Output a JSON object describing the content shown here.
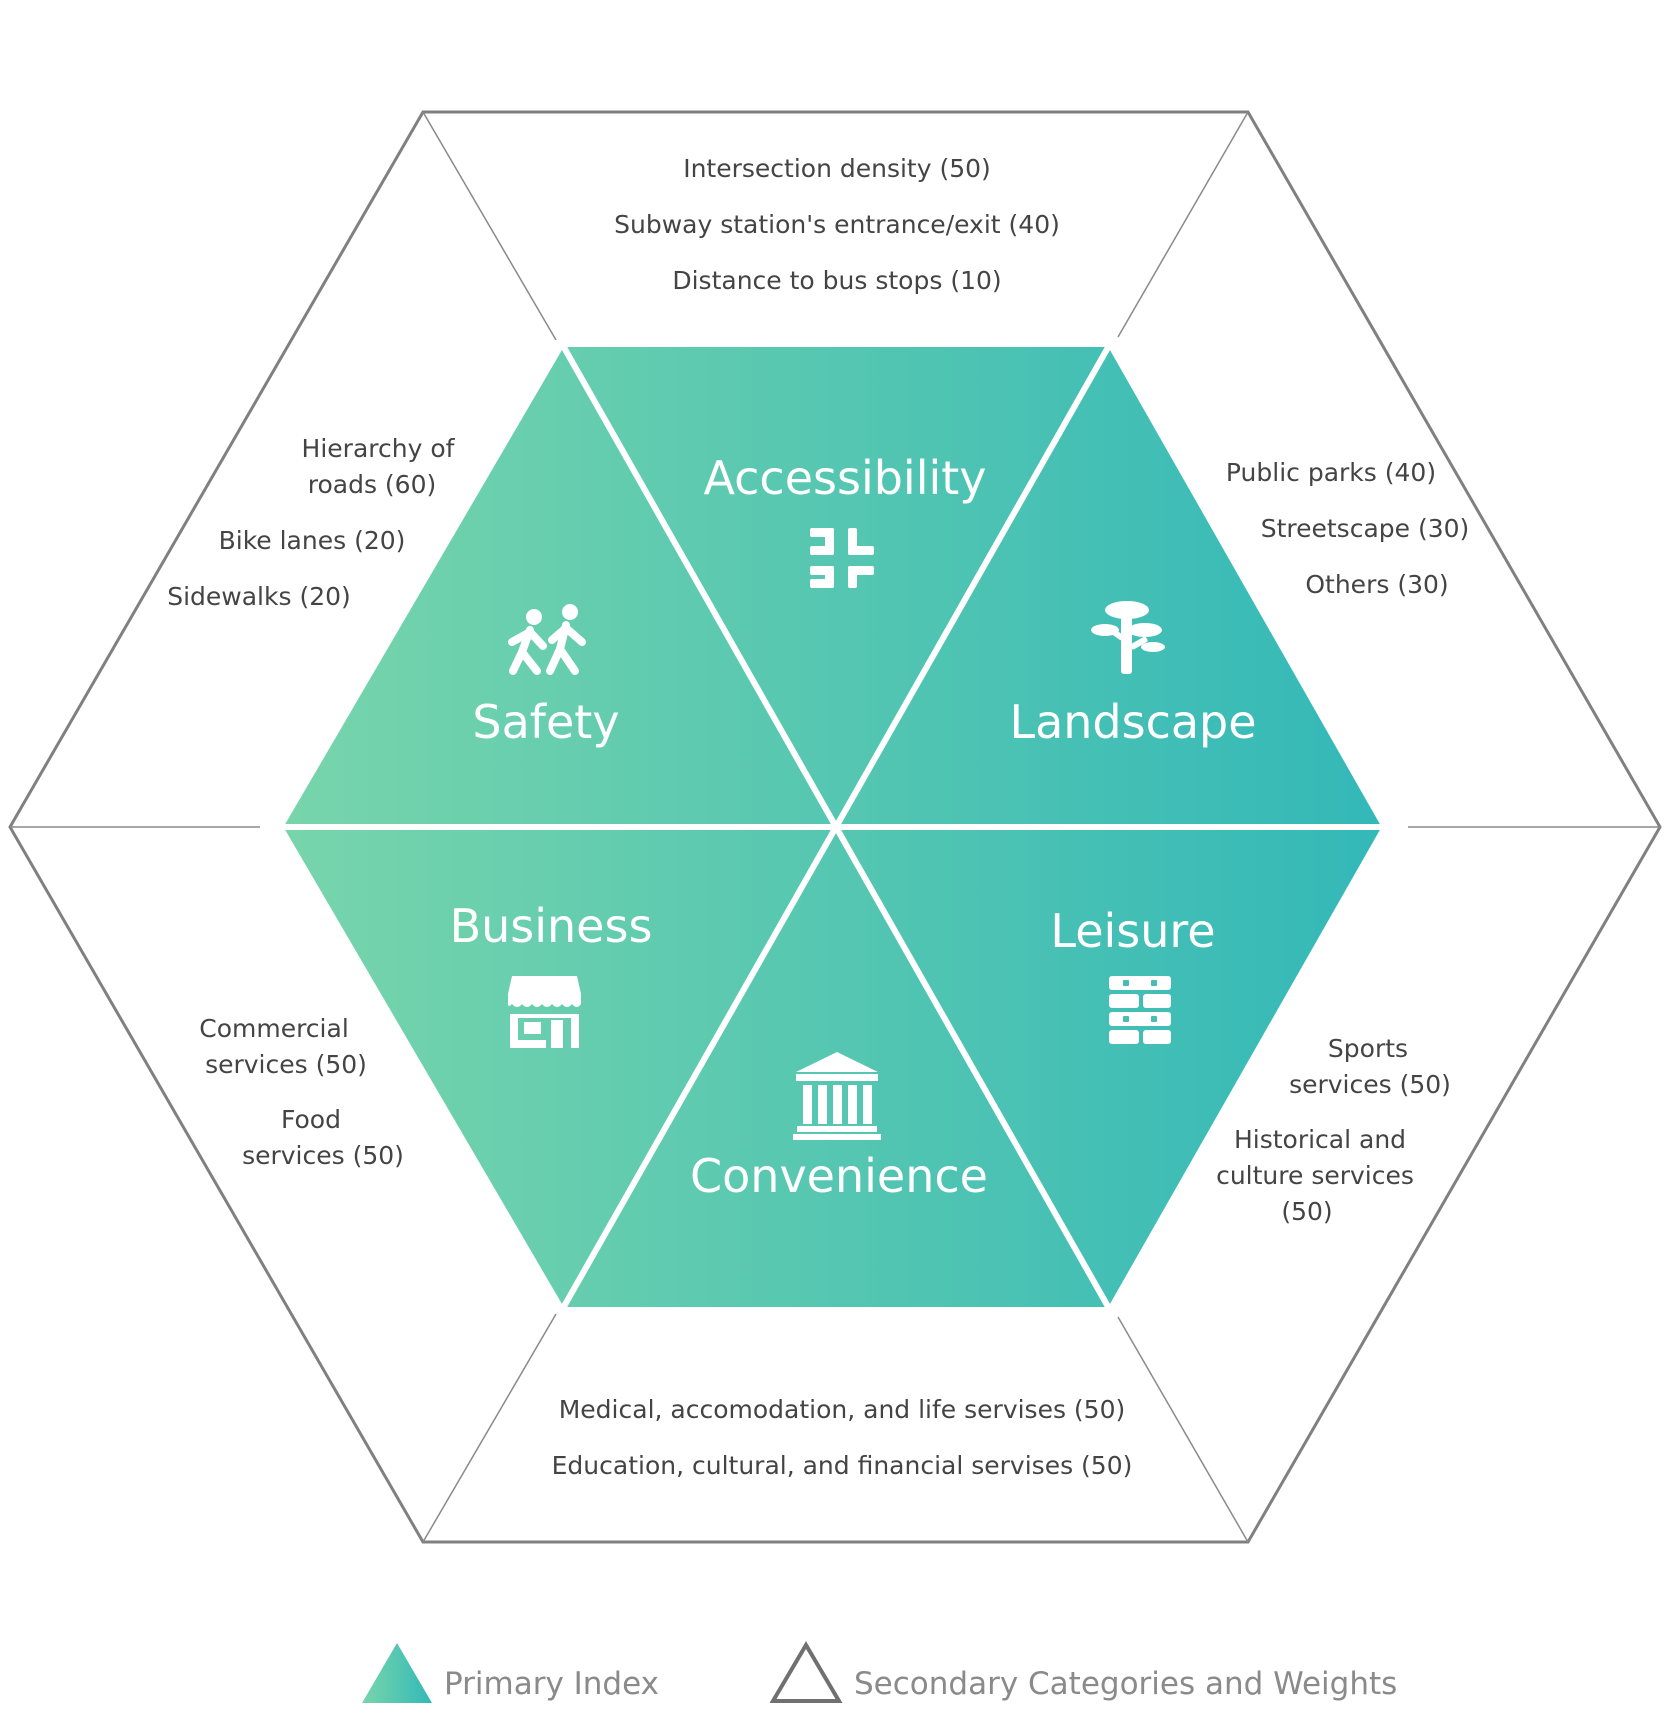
{
  "primary": {
    "accessibility": {
      "label": "Accessibility",
      "icon": "intersection-icon"
    },
    "safety": {
      "label": "Safety",
      "icon": "pedestrians-icon"
    },
    "landscape": {
      "label": "Landscape",
      "icon": "tree-icon"
    },
    "business": {
      "label": "Business",
      "icon": "storefront-icon"
    },
    "convenience": {
      "label": "Convenience",
      "icon": "building-columns-icon"
    },
    "leisure": {
      "label": "Leisure",
      "icon": "brick-wall-icon"
    }
  },
  "secondary": {
    "accessibility": [
      "Intersection density (50)",
      "Subway station's entrance/exit (40)",
      "Distance to bus stops (10)"
    ],
    "safety": [
      "Hierarchy of",
      "roads (60)",
      "Bike lanes (20)",
      "Sidewalks (20)"
    ],
    "landscape": [
      "Public parks (40)",
      "Streetscape (30)",
      "Others (30)"
    ],
    "business": [
      "Commercial",
      "services (50)",
      "Food",
      "services (50)"
    ],
    "leisure": [
      "Sports",
      "services (50)",
      "Historical and",
      "culture services",
      "(50)"
    ],
    "convenience": [
      "Medical, accomodation, and life servises (50)",
      "Education, cultural, and financial servises (50)"
    ]
  },
  "legend": {
    "primary_label": "Primary Index",
    "secondary_label": "Secondary Categories and Weights"
  },
  "colors": {
    "gradient_start": "#78d5ab",
    "gradient_end": "#33b8b8",
    "outline": "#808080",
    "text": "#444444",
    "legend_text": "#8a8a8a"
  }
}
